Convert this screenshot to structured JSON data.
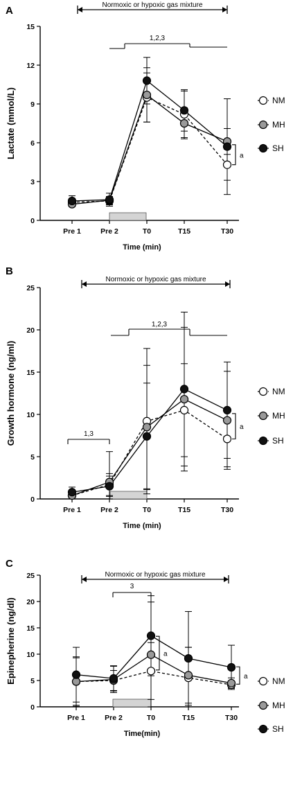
{
  "chart_data": [
    {
      "panel": "A",
      "type": "line",
      "categories": [
        "Pre 1",
        "Pre 2",
        "T0",
        "T15",
        "T30"
      ],
      "xlabel": "Time (min)",
      "ylabel": "Lactate (mmol/L)",
      "ylim": [
        0,
        15
      ],
      "yticks": [
        0,
        3,
        6,
        9,
        12,
        15
      ],
      "gas_label": "Normoxic or hypoxic gas mixture",
      "sig_brackets": [
        {
          "label": "1,2,3"
        }
      ],
      "side_marks": [
        {
          "label": "a"
        }
      ],
      "legend": [
        "NM",
        "MH",
        "SH"
      ],
      "series": [
        {
          "name": "NM",
          "values": [
            1.4,
            1.5,
            9.5,
            8.2,
            4.3
          ],
          "err": [
            0.3,
            0.3,
            1.9,
            1.8,
            1.2
          ]
        },
        {
          "name": "MH",
          "values": [
            1.25,
            1.55,
            9.7,
            7.5,
            6.1
          ],
          "err": [
            0.2,
            0.3,
            2.1,
            1.2,
            1.0
          ]
        },
        {
          "name": "SH",
          "values": [
            1.5,
            1.6,
            10.8,
            8.5,
            5.7
          ],
          "err": [
            0.4,
            0.5,
            1.8,
            1.6,
            3.7
          ]
        }
      ]
    },
    {
      "panel": "B",
      "type": "line",
      "categories": [
        "Pre 1",
        "Pre 2",
        "T0",
        "T15",
        "T30"
      ],
      "xlabel": "Time (min)",
      "ylabel": "Growth hormone (ng/ml)",
      "ylim": [
        0,
        25
      ],
      "yticks": [
        0,
        5,
        10,
        15,
        20,
        25
      ],
      "gas_label": "Normoxic or hypoxic gas mixture",
      "sig_brackets": [
        {
          "label": "1,2,3"
        },
        {
          "label": "1,3"
        }
      ],
      "side_marks": [
        {
          "label": "a"
        }
      ],
      "legend": [
        "NM",
        "MH",
        "SH"
      ],
      "series": [
        {
          "name": "NM",
          "values": [
            0.4,
            1.7,
            9.2,
            10.5,
            7.1
          ],
          "err": [
            0.5,
            1.3,
            8.6,
            5.5,
            3.3
          ]
        },
        {
          "name": "MH",
          "values": [
            0.4,
            2.0,
            8.5,
            11.8,
            9.3
          ],
          "err": [
            0.4,
            3.6,
            7.3,
            8.5,
            5.8
          ]
        },
        {
          "name": "SH",
          "values": [
            0.8,
            1.5,
            7.4,
            13.0,
            10.5
          ],
          "err": [
            0.6,
            1.2,
            6.3,
            9.1,
            5.7
          ]
        }
      ]
    },
    {
      "panel": "C",
      "type": "line",
      "categories": [
        "Pre 1",
        "Pre 2",
        "T0",
        "T15",
        "T30"
      ],
      "xlabel": "Time(min)",
      "ylabel": "Epinepherine (ng/dl)",
      "ylim": [
        0,
        25
      ],
      "yticks": [
        0,
        5,
        10,
        15,
        20,
        25
      ],
      "gas_label": "Normoxic or hypoxic gas mixture",
      "sig_brackets": [
        {
          "label": "3"
        }
      ],
      "side_marks": [
        {
          "label": "a"
        },
        {
          "label": "a"
        }
      ],
      "legend": [
        "NM",
        "MH",
        "SH"
      ],
      "series": [
        {
          "name": "NM",
          "values": [
            4.8,
            5.0,
            6.8,
            5.5,
            4.2
          ],
          "err": [
            4.5,
            1.9,
            5.4,
            5.8,
            0.6
          ]
        },
        {
          "name": "MH",
          "values": [
            4.8,
            5.2,
            9.9,
            6.0,
            4.5
          ],
          "err": [
            4.7,
            2.5,
            10.0,
            5.3,
            1.0
          ]
        },
        {
          "name": "SH",
          "values": [
            6.1,
            5.4,
            13.5,
            9.2,
            7.5
          ],
          "err": [
            5.2,
            2.4,
            7.6,
            8.9,
            4.2
          ]
        }
      ]
    }
  ],
  "colors": {
    "NM": "#ffffff",
    "MH": "#9a9a9a",
    "SH": "#111111",
    "axis": "#000000",
    "gas_box": "#d4d4d4"
  }
}
